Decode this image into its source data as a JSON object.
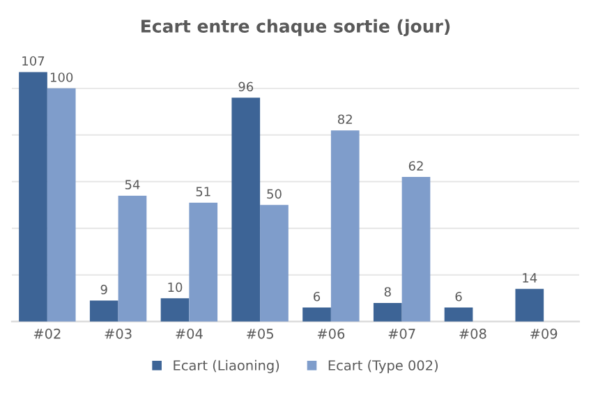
{
  "chart_data": {
    "type": "bar",
    "title": "Ecart entre chaque sortie (jour)",
    "categories": [
      "#02",
      "#03",
      "#04",
      "#05",
      "#06",
      "#07",
      "#08",
      "#09"
    ],
    "series": [
      {
        "name": "Ecart (Liaoning)",
        "color": "#3d6496",
        "values": [
          107,
          9,
          10,
          96,
          6,
          8,
          6,
          14
        ]
      },
      {
        "name": "Ecart (Type 002)",
        "color": "#7f9dcb",
        "values": [
          100,
          54,
          51,
          50,
          82,
          62,
          null,
          null
        ]
      }
    ],
    "yticks": [
      {
        "value": 0,
        "label": null
      },
      {
        "value": 20,
        "label": null
      },
      {
        "value": 40,
        "label": null
      },
      {
        "value": 60,
        "label": null
      },
      {
        "value": 80,
        "label": null
      },
      {
        "value": 100,
        "label": null
      }
    ],
    "tick_labels": "x",
    "grid": "y",
    "legend": "bottom",
    "data_labels": true
  }
}
